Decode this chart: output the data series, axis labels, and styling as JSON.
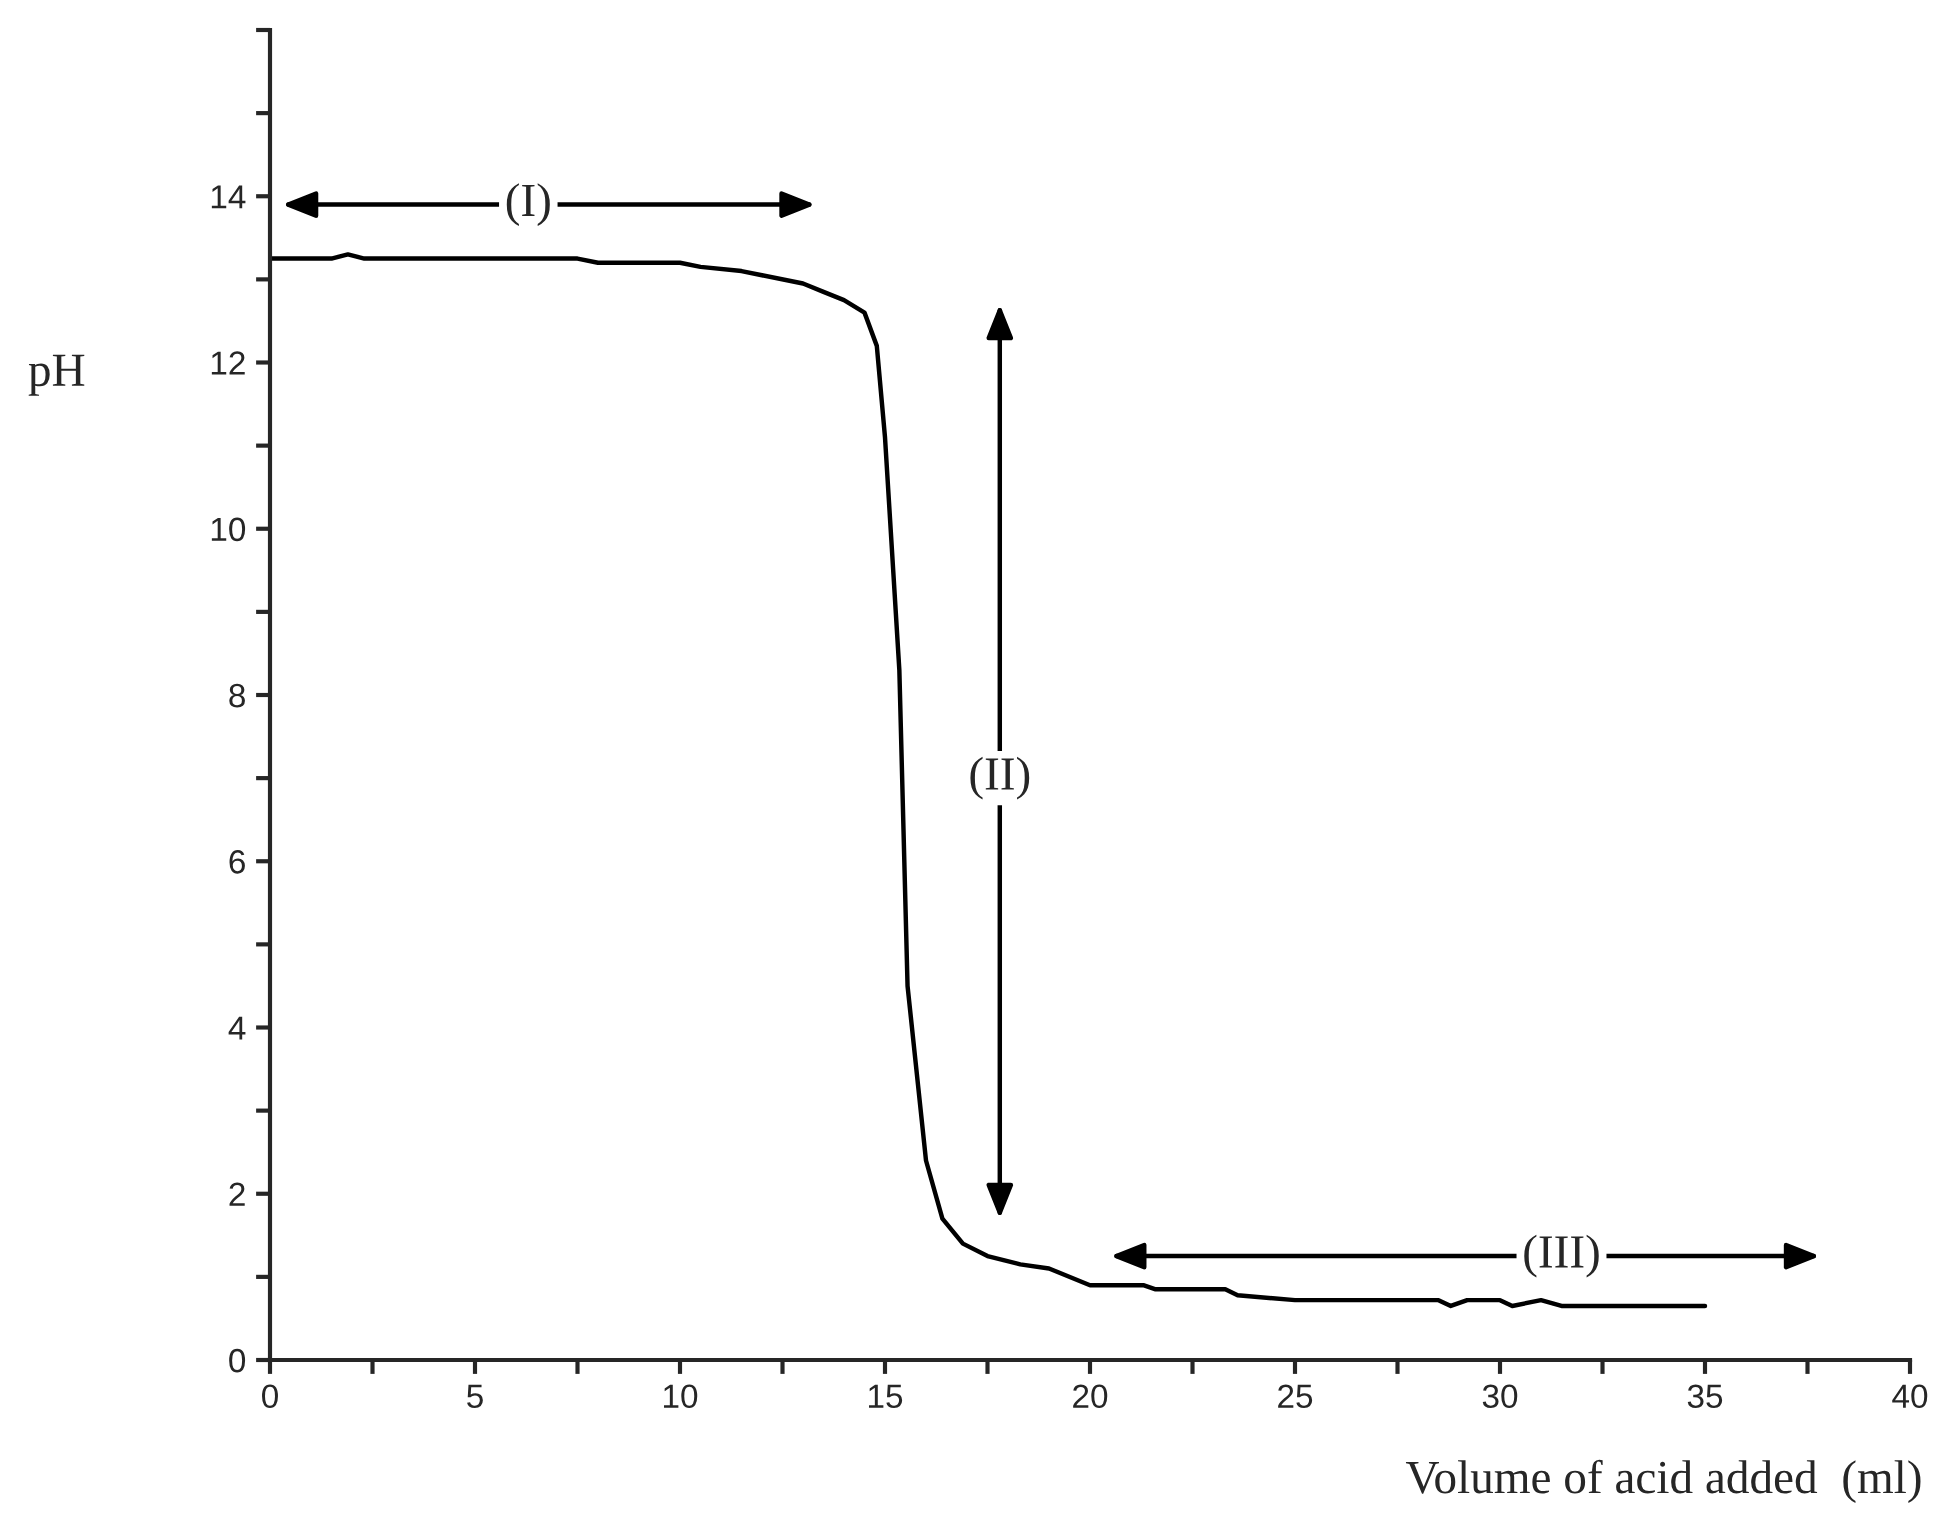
{
  "chart_data": {
    "type": "line",
    "xlabel": "Volume of acid added  (ml)",
    "ylabel": "pH",
    "x": [
      0,
      1.5,
      1.9,
      2.3,
      7.5,
      8,
      10,
      10.5,
      11.5,
      12,
      13,
      13.5,
      14,
      14.5,
      14.8,
      15.0,
      15.2,
      15.35,
      15.55,
      16.0,
      16.4,
      16.9,
      17.5,
      18.3,
      19,
      20,
      21.3,
      21.6,
      23.3,
      23.6,
      25,
      28.5,
      28.8,
      29.2,
      30,
      30.3,
      31,
      31.5,
      35
    ],
    "series": [
      {
        "color": "#000000",
        "values": [
          13.25,
          13.25,
          13.3,
          13.25,
          13.25,
          13.2,
          13.2,
          13.15,
          13.1,
          13.05,
          12.95,
          12.85,
          12.75,
          12.6,
          12.2,
          11.1,
          9.5,
          8.3,
          4.5,
          2.4,
          1.7,
          1.4,
          1.25,
          1.15,
          1.1,
          0.9,
          0.9,
          0.85,
          0.85,
          0.78,
          0.72,
          0.72,
          0.65,
          0.72,
          0.72,
          0.65,
          0.72,
          0.65,
          0.65
        ]
      }
    ],
    "xlim": [
      0,
      40
    ],
    "ylim": [
      0,
      16
    ],
    "xticks": [
      0,
      {
        "value": 2.5,
        "label": null
      },
      5,
      {
        "value": 7.5,
        "label": null
      },
      10,
      {
        "value": 12.5,
        "label": null
      },
      15,
      {
        "value": 17.5,
        "label": null
      },
      20,
      {
        "value": 22.5,
        "label": null
      },
      25,
      {
        "value": 27.5,
        "label": null
      },
      30,
      {
        "value": 32.5,
        "label": null
      },
      35,
      {
        "value": 37.5,
        "label": null
      },
      40
    ],
    "yticks": [
      0,
      {
        "value": 1,
        "label": null
      },
      2,
      {
        "value": 3,
        "label": null
      },
      4,
      {
        "value": 5,
        "label": null
      },
      6,
      {
        "value": 7,
        "label": null
      },
      8,
      {
        "value": 9,
        "label": null
      },
      10,
      {
        "value": 11,
        "label": null
      },
      12,
      {
        "value": 13,
        "label": null
      },
      14,
      {
        "value": 15,
        "label": null
      },
      {
        "value": 16,
        "label": null
      }
    ],
    "grid": false,
    "legend": false,
    "marker": "none",
    "line_style": "solid",
    "annotations": [
      "(I)",
      "(II)",
      "(III)"
    ]
  }
}
